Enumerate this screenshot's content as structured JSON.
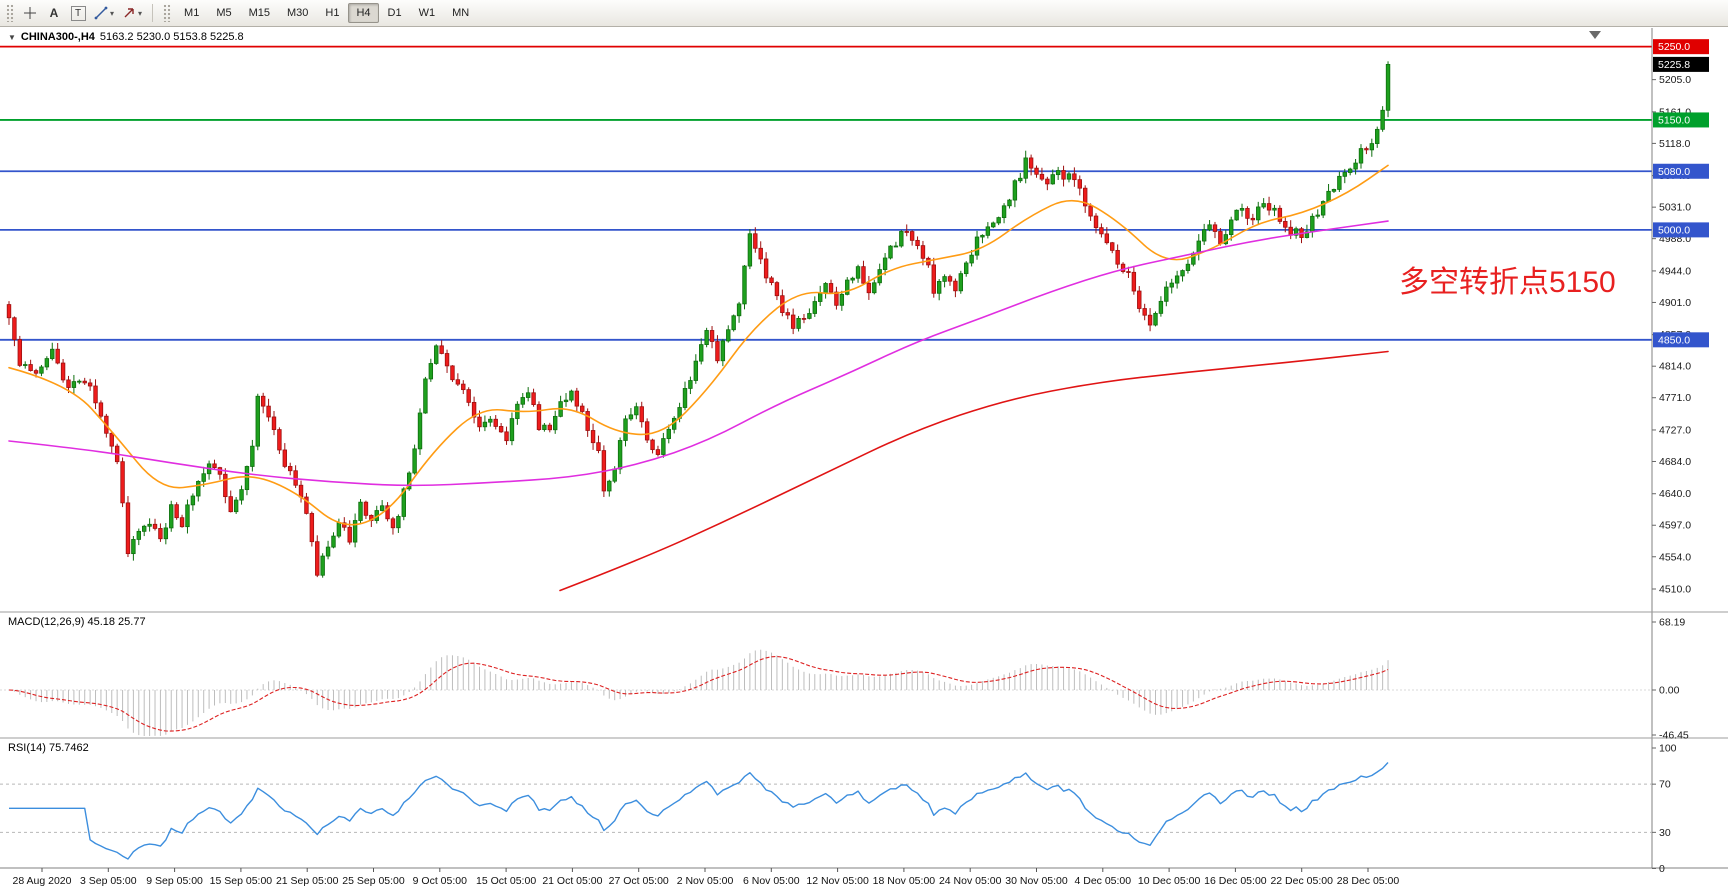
{
  "icons": {
    "dropdown": "▾",
    "symbol_marker": "▼"
  },
  "toolbar": {
    "tools": {
      "a": "A",
      "t": "T"
    },
    "timeframes": [
      "M1",
      "M5",
      "M15",
      "M30",
      "H1",
      "H4",
      "D1",
      "W1",
      "MN"
    ],
    "active_timeframe": "H4"
  },
  "chart": {
    "title_symbol": "CHINA300-,H4",
    "title_ohlc": "5163.2 5230.0 5153.8 5225.8",
    "annotation": "多空转折点5150",
    "y_ticks": [
      "5205.0",
      "5161.0",
      "5118.0",
      "5074.0",
      "5031.0",
      "4988.0",
      "4944.0",
      "4901.0",
      "4857.0",
      "4814.0",
      "4771.0",
      "4727.0",
      "4684.0",
      "4640.0",
      "4597.0",
      "4554.0",
      "4510.0"
    ],
    "y_tick_values": [
      5205,
      5161,
      5118,
      5074,
      5031,
      4988,
      4944,
      4901,
      4857,
      4814,
      4771,
      4727,
      4684,
      4640,
      4597,
      4554,
      4510
    ],
    "x_labels": [
      "28 Aug 2020",
      "3 Sep 05:00",
      "9 Sep 05:00",
      "15 Sep 05:00",
      "21 Sep 05:00",
      "25 Sep 05:00",
      "9 Oct 05:00",
      "15 Oct 05:00",
      "21 Oct 05:00",
      "27 Oct 05:00",
      "2 Nov 05:00",
      "6 Nov 05:00",
      "12 Nov 05:00",
      "18 Nov 05:00",
      "24 Nov 05:00",
      "30 Nov 05:00",
      "4 Dec 05:00",
      "10 Dec 05:00",
      "16 Dec 05:00",
      "22 Dec 05:00",
      "28 Dec 05:00"
    ]
  },
  "macd": {
    "label": "MACD(12,26,9) 45.18 25.77",
    "value": 45.18,
    "signal": 25.77,
    "ticks": [
      "68.19",
      "0.00",
      "-46.45"
    ]
  },
  "rsi": {
    "label": "RSI(14) 75.7462",
    "value": 75.7462,
    "ticks": [
      "100",
      "70",
      "30",
      "0"
    ],
    "levels": [
      70,
      30
    ]
  },
  "colors": {
    "bull_fill": "#1ea01e",
    "bull_border": "#0e6e0e",
    "bear_fill": "#ee1c1c",
    "bear_border": "#9d1010",
    "annotation": "#e82020",
    "axis_text": "#1a1a1a",
    "macd_hist": "#bdbdbd",
    "macd_signal": "#dd2222",
    "rsi_line": "#3c8ede",
    "separator": "#9c9c9c",
    "level_red": "#e00000",
    "level_green": "#00a02c",
    "level_blue": "#3355cc",
    "current_tag_bg": "#000000"
  },
  "chart_data": {
    "type": "candlestick",
    "symbol": "CHINA300-",
    "timeframe": "H4",
    "bar_count": 256,
    "current_bar": {
      "open": 5163.2,
      "high": 5230.0,
      "low": 5153.8,
      "close": 5225.8
    },
    "price_range_visible": [
      4510,
      5250
    ],
    "horizontal_levels": [
      {
        "price": 5250.0,
        "label": "5250.0",
        "color": "#e00000"
      },
      {
        "price": 5150.0,
        "label": "5150.0",
        "color": "#00a02c"
      },
      {
        "price": 5080.0,
        "label": "5080.0",
        "color": "#3355cc"
      },
      {
        "price": 5000.0,
        "label": "5000.0",
        "color": "#3355cc"
      },
      {
        "price": 4850.0,
        "label": "4850.0",
        "color": "#3355cc"
      }
    ],
    "current_price_tag": {
      "price": 5225.8,
      "label": "5225.8"
    },
    "close_path_anchors": [
      [
        0,
        4880
      ],
      [
        2,
        4815
      ],
      [
        5,
        4800
      ],
      [
        8,
        4835
      ],
      [
        11,
        4780
      ],
      [
        14,
        4798
      ],
      [
        17,
        4745
      ],
      [
        20,
        4680
      ],
      [
        22,
        4565
      ],
      [
        24,
        4585
      ],
      [
        26,
        4605
      ],
      [
        28,
        4575
      ],
      [
        30,
        4625
      ],
      [
        32,
        4600
      ],
      [
        34,
        4640
      ],
      [
        37,
        4685
      ],
      [
        39,
        4660
      ],
      [
        41,
        4620
      ],
      [
        43,
        4645
      ],
      [
        45,
        4700
      ],
      [
        46,
        4780
      ],
      [
        48,
        4745
      ],
      [
        50,
        4700
      ],
      [
        52,
        4665
      ],
      [
        55,
        4620
      ],
      [
        57,
        4532
      ],
      [
        59,
        4565
      ],
      [
        61,
        4600
      ],
      [
        63,
        4580
      ],
      [
        65,
        4625
      ],
      [
        67,
        4600
      ],
      [
        69,
        4625
      ],
      [
        71,
        4590
      ],
      [
        73,
        4640
      ],
      [
        75,
        4700
      ],
      [
        77,
        4800
      ],
      [
        79,
        4835
      ],
      [
        81,
        4815
      ],
      [
        83,
        4790
      ],
      [
        85,
        4760
      ],
      [
        87,
        4730
      ],
      [
        89,
        4745
      ],
      [
        92,
        4718
      ],
      [
        94,
        4755
      ],
      [
        96,
        4780
      ],
      [
        98,
        4730
      ],
      [
        100,
        4732
      ],
      [
        102,
        4770
      ],
      [
        104,
        4780
      ],
      [
        106,
        4745
      ],
      [
        109,
        4700
      ],
      [
        110,
        4648
      ],
      [
        112,
        4680
      ],
      [
        114,
        4740
      ],
      [
        116,
        4760
      ],
      [
        118,
        4720
      ],
      [
        120,
        4688
      ],
      [
        122,
        4730
      ],
      [
        125,
        4780
      ],
      [
        127,
        4820
      ],
      [
        129,
        4868
      ],
      [
        131,
        4828
      ],
      [
        133,
        4858
      ],
      [
        135,
        4898
      ],
      [
        137,
        4990
      ],
      [
        138,
        4975
      ],
      [
        140,
        4938
      ],
      [
        142,
        4905
      ],
      [
        145,
        4870
      ],
      [
        147,
        4880
      ],
      [
        149,
        4900
      ],
      [
        151,
        4928
      ],
      [
        153,
        4898
      ],
      [
        155,
        4925
      ],
      [
        157,
        4950
      ],
      [
        159,
        4918
      ],
      [
        162,
        4958
      ],
      [
        164,
        4985
      ],
      [
        166,
        5000
      ],
      [
        168,
        4975
      ],
      [
        170,
        4945
      ],
      [
        171,
        4918
      ],
      [
        173,
        4938
      ],
      [
        175,
        4918
      ],
      [
        177,
        4950
      ],
      [
        180,
        5000
      ],
      [
        182,
        5012
      ],
      [
        184,
        5032
      ],
      [
        186,
        5060
      ],
      [
        188,
        5092
      ],
      [
        190,
        5072
      ],
      [
        192,
        5058
      ],
      [
        194,
        5080
      ],
      [
        197,
        5068
      ],
      [
        199,
        5040
      ],
      [
        201,
        5010
      ],
      [
        203,
        4985
      ],
      [
        205,
        4958
      ],
      [
        207,
        4938
      ],
      [
        209,
        4900
      ],
      [
        211,
        4868
      ],
      [
        213,
        4902
      ],
      [
        216,
        4940
      ],
      [
        218,
        4958
      ],
      [
        220,
        4988
      ],
      [
        222,
        5010
      ],
      [
        224,
        4988
      ],
      [
        226,
        5012
      ],
      [
        228,
        5032
      ],
      [
        230,
        5008
      ],
      [
        232,
        5040
      ],
      [
        235,
        5018
      ],
      [
        237,
        5000
      ],
      [
        239,
        4990
      ],
      [
        241,
        5012
      ],
      [
        243,
        5040
      ],
      [
        245,
        5058
      ],
      [
        247,
        5080
      ],
      [
        249,
        5098
      ],
      [
        252,
        5122
      ],
      [
        254,
        5163.2
      ],
      [
        255,
        5225.8
      ]
    ],
    "moving_averages": [
      {
        "name": "fast-orange",
        "color": "#ff9c14",
        "points": [
          [
            9,
            4812
          ],
          [
            69,
            4790
          ],
          [
            114,
            4722
          ],
          [
            160,
            4645
          ],
          [
            206,
            4652
          ],
          [
            251,
            4668
          ],
          [
            297,
            4642
          ],
          [
            343,
            4590
          ],
          [
            388,
            4612
          ],
          [
            434,
            4700
          ],
          [
            480,
            4758
          ],
          [
            525,
            4750
          ],
          [
            571,
            4760
          ],
          [
            617,
            4722
          ],
          [
            663,
            4720
          ],
          [
            708,
            4782
          ],
          [
            754,
            4868
          ],
          [
            800,
            4918
          ],
          [
            845,
            4910
          ],
          [
            891,
            4948
          ],
          [
            937,
            4960
          ],
          [
            982,
            4972
          ],
          [
            1028,
            5018
          ],
          [
            1074,
            5048
          ],
          [
            1119,
            5012
          ],
          [
            1165,
            4952
          ],
          [
            1211,
            4972
          ],
          [
            1257,
            5010
          ],
          [
            1302,
            5022
          ],
          [
            1348,
            5050
          ],
          [
            1388,
            5088
          ]
        ]
      },
      {
        "name": "medium-magenta",
        "color": "#e02ee0",
        "points": [
          [
            9,
            4712
          ],
          [
            91,
            4700
          ],
          [
            171,
            4682
          ],
          [
            251,
            4666
          ],
          [
            331,
            4656
          ],
          [
            411,
            4650
          ],
          [
            491,
            4655
          ],
          [
            571,
            4662
          ],
          [
            640,
            4680
          ],
          [
            708,
            4712
          ],
          [
            777,
            4762
          ],
          [
            845,
            4802
          ],
          [
            914,
            4846
          ],
          [
            982,
            4880
          ],
          [
            1051,
            4916
          ],
          [
            1119,
            4946
          ],
          [
            1188,
            4966
          ],
          [
            1257,
            4986
          ],
          [
            1325,
            5000
          ],
          [
            1388,
            5012
          ]
        ]
      },
      {
        "name": "slow-red",
        "color": "#e01414",
        "points": [
          [
            560,
            4508
          ],
          [
            640,
            4550
          ],
          [
            731,
            4606
          ],
          [
            822,
            4666
          ],
          [
            914,
            4726
          ],
          [
            1005,
            4768
          ],
          [
            1097,
            4792
          ],
          [
            1188,
            4806
          ],
          [
            1279,
            4818
          ],
          [
            1388,
            4834
          ]
        ]
      }
    ],
    "macd_axis": [
      68.19,
      0,
      -46.45
    ],
    "rsi_axis": [
      100,
      70,
      30,
      0
    ]
  }
}
